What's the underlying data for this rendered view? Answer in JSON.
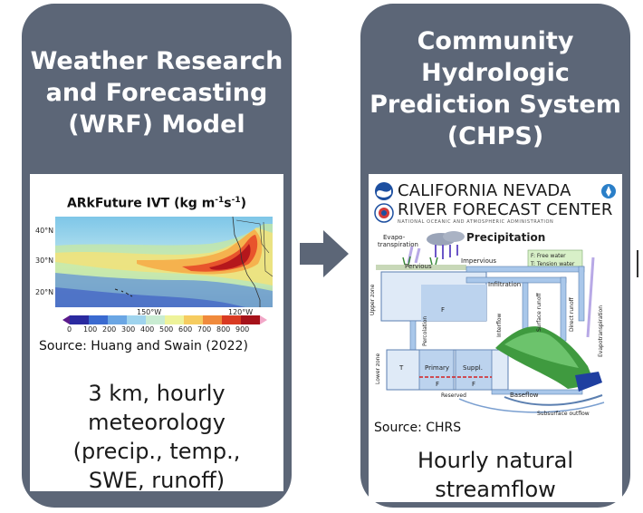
{
  "left_panel": {
    "title": [
      "Weather Research",
      "and Forecasting",
      "(WRF) Model"
    ],
    "map": {
      "title_base": "ARkFuture IVT (kg m",
      "title_sup1": "-1",
      "title_mid": "s",
      "title_sup2": "-1",
      "title_end": ")",
      "lat_labels": [
        "40°N",
        "30°N",
        "20°N"
      ],
      "lon_labels": [
        "150°W",
        "120°W"
      ],
      "colorbar_ticks": [
        "0",
        "100",
        "200",
        "300",
        "400",
        "500",
        "600",
        "700",
        "800",
        "900"
      ]
    },
    "source": "Source: Huang and Swain (2022)",
    "caption": [
      "3 km, hourly",
      "meteorology",
      "(precip., temp.,",
      "SWE, runoff)"
    ]
  },
  "right_panel": {
    "title": [
      "Community",
      "Hydrologic",
      "Prediction System",
      "(CHPS)"
    ],
    "logo": {
      "line1": "CALIFORNIA NEVADA",
      "line2": "RIVER FORECAST CENTER",
      "subline": "NATIONAL OCEANIC AND ATMOSPHERIC ADMINISTRATION"
    },
    "diagram_labels": {
      "precipitation": "Precipitation",
      "evapo1": "Evapo-",
      "evapo2": "transpiration",
      "pervious": "Pervious",
      "impervious": "Impervious",
      "legend1": "F: Free water",
      "legend2": "T: Tension water",
      "upper_zone": "Upper zone",
      "infiltration": "Infiltration",
      "percolation": "Percolation",
      "interflow": "Interflow",
      "surface_runoff": "Surface runoff",
      "direct_runoff": "Direct runoff",
      "evapotranspiration": "Evapotranspiration",
      "lower_zone": "Lower zone",
      "t": "T",
      "f": "F",
      "primary": "Primary",
      "suppl": "Suppl.",
      "reserved": "Reserved",
      "baseflow": "Baseflow",
      "subsurface_outflow": "Subsurface outflow"
    },
    "source": "Source: CHRS",
    "caption": [
      "Hourly natural",
      "streamflow"
    ]
  },
  "colors": {
    "panel": "#5c6677",
    "arrow": "#5c6677",
    "title_text": "#ffffff"
  }
}
